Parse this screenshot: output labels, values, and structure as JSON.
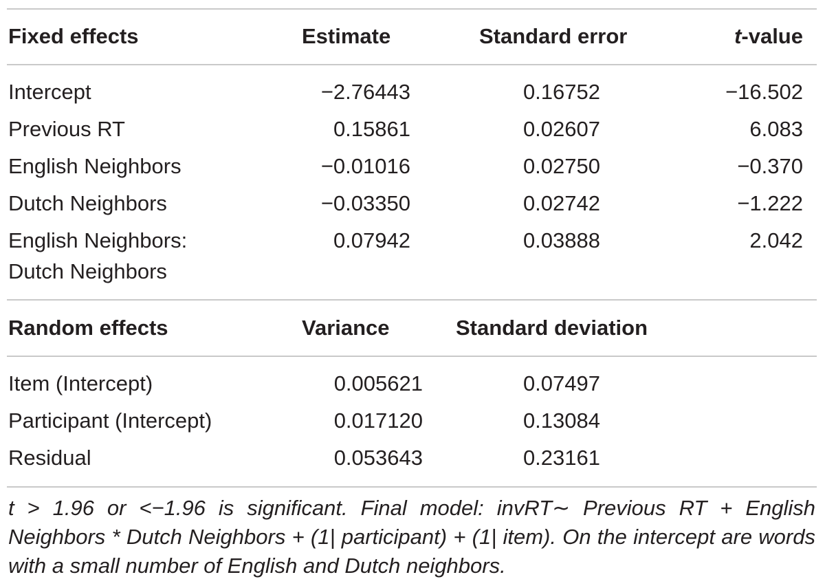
{
  "fixed": {
    "headers": {
      "label": "Fixed effects",
      "estimate": "Estimate",
      "se": "Standard error",
      "t_italic": "t",
      "t_rest": "-value"
    },
    "rows": [
      {
        "label": "Intercept",
        "estimate": "−2.76443",
        "se": "0.16752",
        "t": "−16.502"
      },
      {
        "label": "Previous RT",
        "estimate": "0.15861",
        "se": "0.02607",
        "t": "6.083"
      },
      {
        "label": "English Neighbors",
        "estimate": "−0.01016",
        "se": "0.02750",
        "t": "−0.370"
      },
      {
        "label": "Dutch Neighbors",
        "estimate": "−0.03350",
        "se": "0.02742",
        "t": "−1.222"
      },
      {
        "label_line1": "English Neighbors:",
        "label_line2": "Dutch Neighbors",
        "estimate": "0.07942",
        "se": "0.03888",
        "t": "2.042"
      }
    ]
  },
  "random": {
    "headers": {
      "label": "Random effects",
      "variance": "Variance",
      "sd": "Standard deviation"
    },
    "rows": [
      {
        "label": "Item (Intercept)",
        "variance": "0.005621",
        "sd": "0.07497"
      },
      {
        "label": "Participant (Intercept)",
        "variance": "0.017120",
        "sd": "0.13084"
      },
      {
        "label": "Residual",
        "variance": "0.053643",
        "sd": "0.23161"
      }
    ]
  },
  "footnote": "t > 1.96 or <−1.96 is significant. Final model: invRT∼ Previous RT + English Neighbors * Dutch Neighbors + (1| participant) + (1| item). On the intercept are words with a small number of English and Dutch neighbors."
}
